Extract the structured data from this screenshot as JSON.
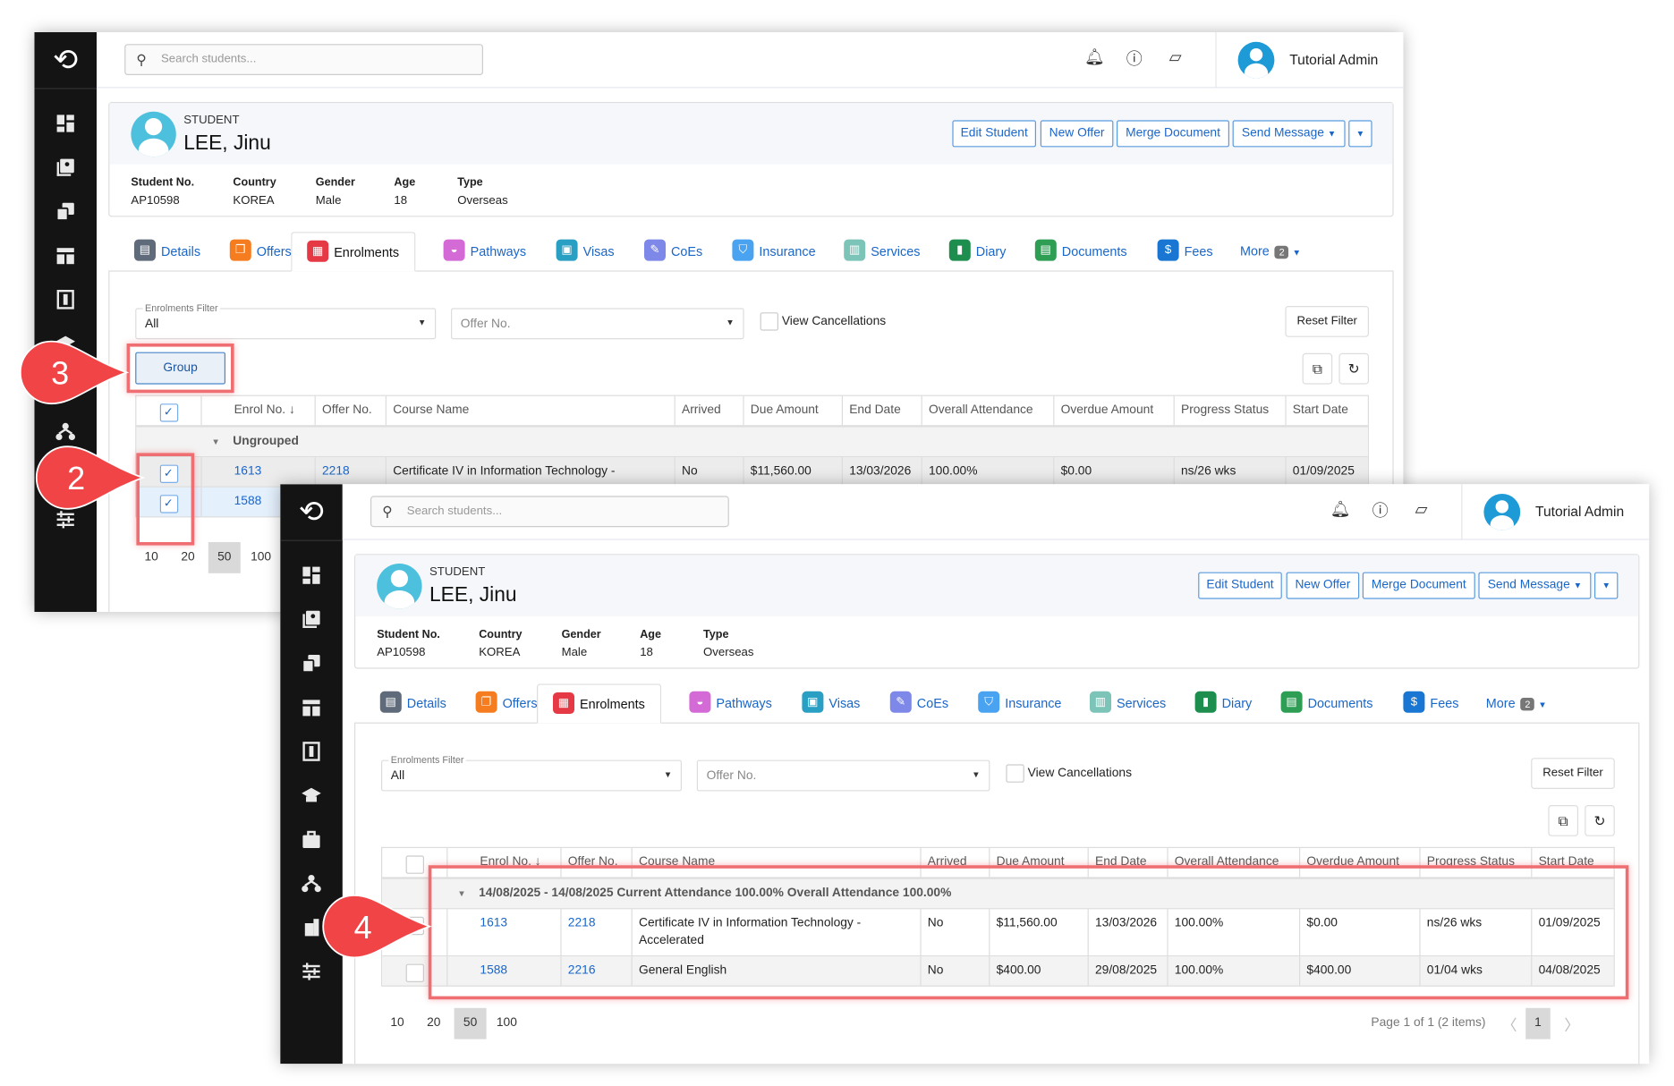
{
  "app": {
    "search_placeholder": "Search students...",
    "user_name": "Tutorial Admin",
    "top_icons": [
      "bell-icon",
      "help-icon",
      "chat-icon"
    ],
    "sidebar_icons": [
      "dashboard-icon",
      "contacts-icon",
      "offers-icon",
      "layout-icon",
      "fees-icon",
      "graduation-icon",
      "briefcase-icon",
      "network-icon",
      "building-icon",
      "settings-sliders-icon"
    ]
  },
  "student": {
    "label": "STUDENT",
    "name": "LEE, Jinu",
    "fields": [
      {
        "label": "Student No.",
        "value": "AP10598"
      },
      {
        "label": "Country",
        "value": "KOREA"
      },
      {
        "label": "Gender",
        "value": "Male"
      },
      {
        "label": "Age",
        "value": "18"
      },
      {
        "label": "Type",
        "value": "Overseas"
      }
    ],
    "actions": [
      "Edit Student",
      "New Offer",
      "Merge Document",
      "Send Message"
    ]
  },
  "tabs": [
    {
      "label": "Details",
      "color": "#5f6b7a"
    },
    {
      "label": "Offers",
      "color": "#f57c1f"
    },
    {
      "label": "Enrolments",
      "color": "#e53945",
      "active": true
    },
    {
      "label": "Pathways",
      "color": "#d46ad6"
    },
    {
      "label": "Visas",
      "color": "#2a9fc4"
    },
    {
      "label": "CoEs",
      "color": "#7e88e8"
    },
    {
      "label": "Insurance",
      "color": "#4aa3f0"
    },
    {
      "label": "Services",
      "color": "#7cc4b8"
    },
    {
      "label": "Diary",
      "color": "#1e8e4e"
    },
    {
      "label": "Documents",
      "color": "#2e9e55"
    },
    {
      "label": "Fees",
      "color": "#1976d2"
    }
  ],
  "more": {
    "label": "More",
    "count": "2"
  },
  "filters": {
    "enrolments_filter_label": "Enrolments Filter",
    "enrolments_filter_value": "All",
    "offer_placeholder": "Offer No.",
    "view_cancellations": "View Cancellations",
    "reset_filter": "Reset Filter",
    "group": "Group"
  },
  "columns": [
    "Enrol No.",
    "Offer No.",
    "Course Name",
    "Arrived",
    "Due Amount",
    "End Date",
    "Overall Attendance",
    "Overdue Amount",
    "Progress Status",
    "Start Date"
  ],
  "page_sizes": [
    "10",
    "20",
    "50",
    "100"
  ],
  "selected_page_size": "50",
  "window1": {
    "group_label": "Ungrouped",
    "rows": [
      {
        "enrol": "1613",
        "offer": "2218",
        "course": "Certificate IV in Information Technology -",
        "arrived": "No",
        "due": "$11,560.00",
        "end": "13/03/2026",
        "attendance": "100.00%",
        "overdue": "$0.00",
        "progress": "ns/26 wks",
        "start": "01/09/2025",
        "checked": true
      },
      {
        "enrol": "1588",
        "checked": true
      }
    ]
  },
  "window2": {
    "group_label": "14/08/2025 - 14/08/2025 Current Attendance 100.00% Overall Attendance 100.00%",
    "rows": [
      {
        "enrol": "1613",
        "offer": "2218",
        "course": "Certificate IV in Information Technology -",
        "course2": "Accelerated",
        "arrived": "No",
        "due": "$11,560.00",
        "end": "13/03/2026",
        "attendance": "100.00%",
        "overdue": "$0.00",
        "progress": "ns/26 wks",
        "start": "01/09/2025"
      },
      {
        "enrol": "1588",
        "offer": "2216",
        "course": "General English",
        "arrived": "No",
        "due": "$400.00",
        "end": "29/08/2025",
        "attendance": "100.00%",
        "overdue": "$400.00",
        "progress": "01/04 wks",
        "start": "04/08/2025"
      }
    ],
    "page_info": "Page 1 of 1 (2 items)",
    "current_page": "1"
  },
  "callouts": [
    "3",
    "2",
    "4"
  ],
  "annotation_color": "#f04447"
}
